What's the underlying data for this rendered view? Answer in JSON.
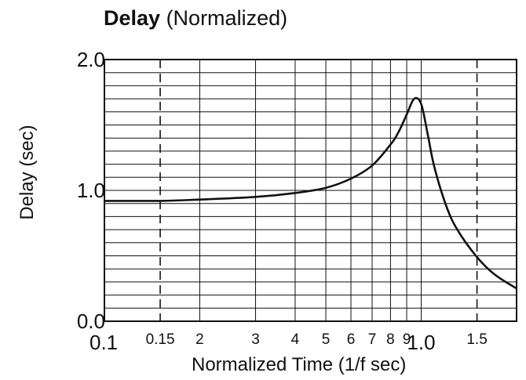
{
  "title": {
    "bold": "Delay",
    "rest": " (Normalized)"
  },
  "chart_data": {
    "type": "line",
    "title": "Delay (Normalized)",
    "xlabel": "Normalized Time (1/f sec)",
    "ylabel": "Delay (sec)",
    "xscale": "log",
    "xlim": [
      0.1,
      2.0
    ],
    "ylim": [
      0.0,
      2.0
    ],
    "grid": true,
    "x_tick_labels": [
      {
        "value": 0.1,
        "label": "0.1",
        "major": true
      },
      {
        "value": 0.15,
        "label": "0.15",
        "major": false
      },
      {
        "value": 0.2,
        "label": "2",
        "major": false
      },
      {
        "value": 0.3,
        "label": "3",
        "major": false
      },
      {
        "value": 0.4,
        "label": "4",
        "major": false
      },
      {
        "value": 0.5,
        "label": "5",
        "major": false
      },
      {
        "value": 0.6,
        "label": "6",
        "major": false
      },
      {
        "value": 0.7,
        "label": "7",
        "major": false
      },
      {
        "value": 0.8,
        "label": "8",
        "major": false
      },
      {
        "value": 0.9,
        "label": "9",
        "major": false
      },
      {
        "value": 1.0,
        "label": "1.0",
        "major": true
      },
      {
        "value": 1.5,
        "label": "1.5",
        "major": false
      }
    ],
    "y_tick_labels": [
      {
        "value": 0.0,
        "label": "0.0"
      },
      {
        "value": 1.0,
        "label": "1.0"
      },
      {
        "value": 2.0,
        "label": "2.0"
      }
    ],
    "dashed_gridlines_x": [
      0.15,
      1.5
    ],
    "series": [
      {
        "x": [
          0.1,
          0.15,
          0.2,
          0.3,
          0.4,
          0.5,
          0.6,
          0.7,
          0.8,
          0.85,
          0.9,
          0.95,
          1.0,
          1.05,
          1.1,
          1.2,
          1.3,
          1.5,
          1.7,
          2.0
        ],
        "y": [
          0.92,
          0.92,
          0.93,
          0.95,
          0.98,
          1.02,
          1.09,
          1.19,
          1.35,
          1.45,
          1.58,
          1.7,
          1.66,
          1.42,
          1.18,
          0.88,
          0.7,
          0.49,
          0.36,
          0.25
        ]
      }
    ]
  }
}
